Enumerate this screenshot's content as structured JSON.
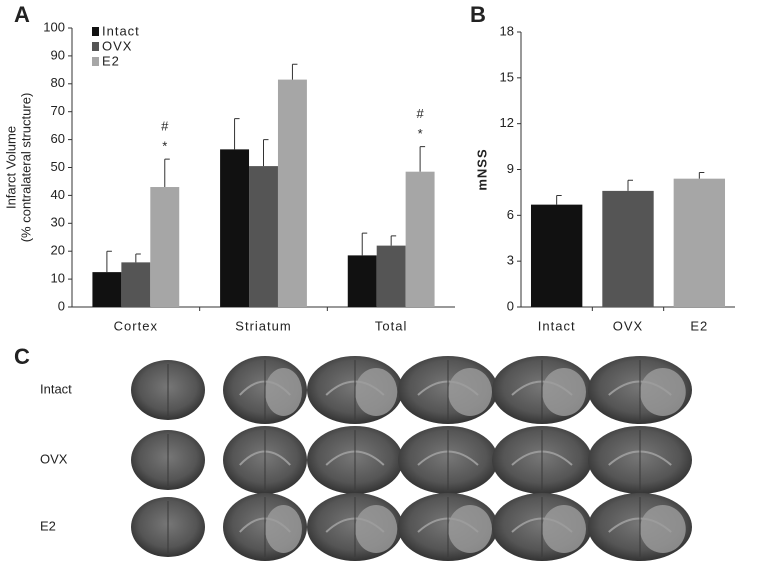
{
  "chart_data": [
    {
      "type": "bar",
      "panel": "A",
      "ylabel": [
        "Infarct Volume",
        "(% contralateral structure)"
      ],
      "categories": [
        "Cortex",
        "Striatum",
        "Total"
      ],
      "series": [
        {
          "name": "Intact",
          "color": "#111111",
          "values": [
            12.5,
            56.5,
            18.5
          ],
          "errors": [
            7.5,
            11,
            8
          ],
          "marks": [
            [],
            [],
            []
          ]
        },
        {
          "name": "OVX",
          "color": "#555555",
          "values": [
            16,
            50.5,
            22
          ],
          "errors": [
            3,
            9.5,
            3.5
          ],
          "marks": [
            [],
            [],
            []
          ]
        },
        {
          "name": "E2",
          "color": "#a6a6a6",
          "values": [
            43,
            81.5,
            48.5
          ],
          "errors": [
            10,
            5.5,
            9
          ],
          "marks": [
            [
              "*",
              "#"
            ],
            [],
            [
              "*",
              "#"
            ]
          ]
        }
      ],
      "ylim": [
        0,
        100
      ],
      "yticks": [
        0,
        10,
        20,
        30,
        40,
        50,
        60,
        70,
        80,
        90,
        100
      ],
      "legend": "top-left"
    },
    {
      "type": "bar",
      "panel": "B",
      "ylabel": "mNSS",
      "categories": [
        "Intact",
        "OVX",
        "E2"
      ],
      "colors": [
        "#111111",
        "#555555",
        "#a6a6a6"
      ],
      "values": [
        6.7,
        7.6,
        8.4
      ],
      "errors": [
        0.6,
        0.7,
        0.4
      ],
      "ylim": [
        0,
        18
      ],
      "yticks": [
        0,
        3,
        6,
        9,
        12,
        15,
        18
      ]
    }
  ],
  "panel_c": {
    "label": "C",
    "rows": [
      "Intact",
      "OVX",
      "E2"
    ]
  }
}
